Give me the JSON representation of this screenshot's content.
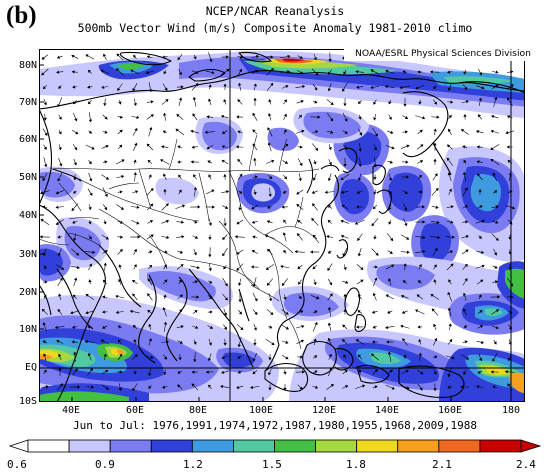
{
  "panel_label": "(b)",
  "title_line1": "NCEP/NCAR Reanalysis",
  "title_line2": "500mb Vector Wind (m/s) Composite Anomaly 1981-2010 climo",
  "credit": "NOAA/ESRL Physical Sciences Division",
  "footer": "Jun to Jul: 1976,1991,1974,1972,1987,1980,1955,1968,2009,1988",
  "lat_labels": [
    "80N",
    "70N",
    "60N",
    "50N",
    "40N",
    "30N",
    "20N",
    "10N",
    "EQ",
    "10S"
  ],
  "lon_labels": [
    "40E",
    "60E",
    "80E",
    "100E",
    "120E",
    "140E",
    "160E",
    "180"
  ],
  "colorbar": {
    "labels": [
      "0.6",
      "0.9",
      "1.2",
      "1.5",
      "1.8",
      "2.1",
      "2.4"
    ],
    "colors": [
      "#ffffff",
      "#c8c8ff",
      "#7b7bf2",
      "#3040d8",
      "#3f9be0",
      "#52c9a0",
      "#43c043",
      "#a8d840",
      "#f0d820",
      "#f7a020",
      "#f06820",
      "#c80000"
    ]
  },
  "colors": {
    "land_outline": "#000000",
    "vector": "#000000",
    "grid": "#000000"
  }
}
